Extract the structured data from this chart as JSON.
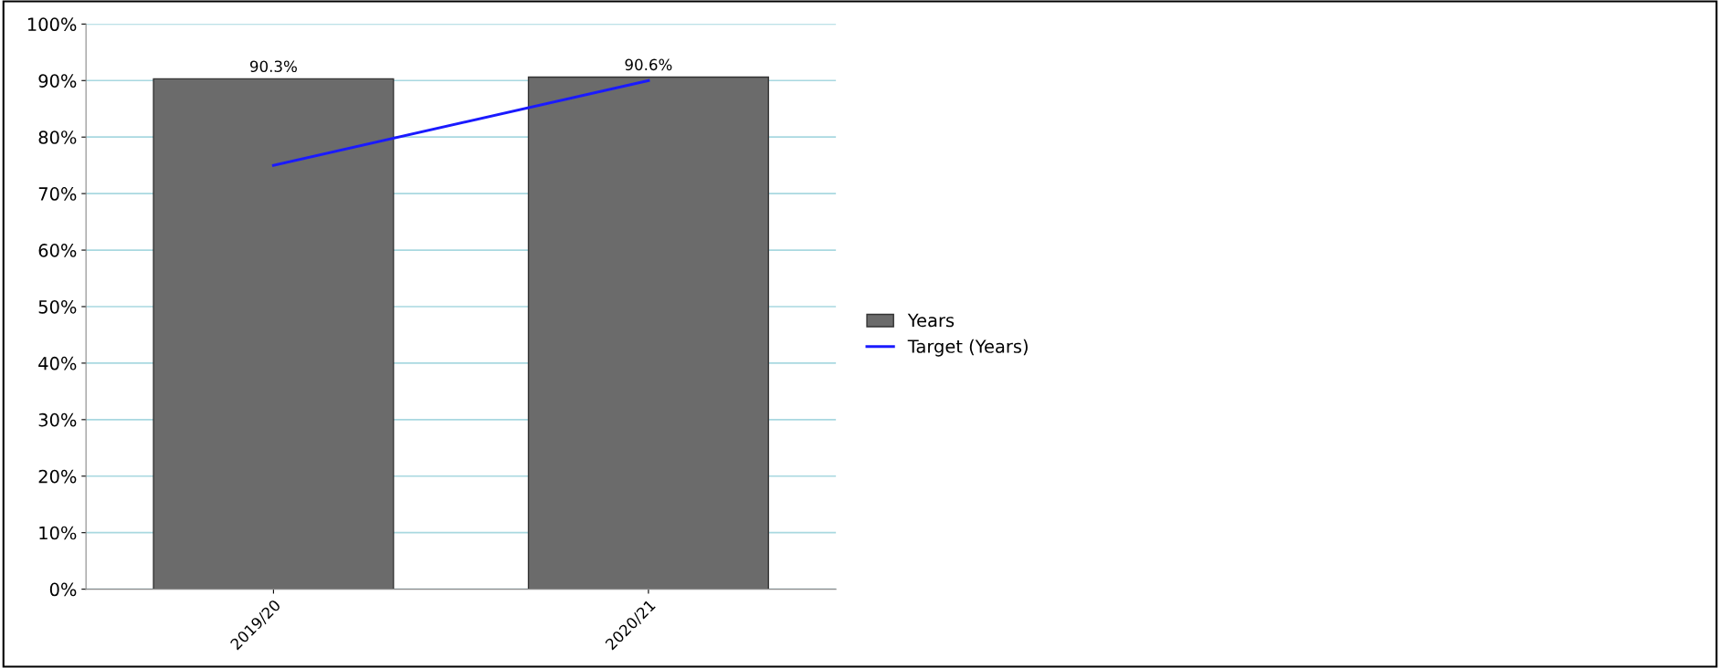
{
  "chart_data": {
    "type": "bar",
    "categories": [
      "2019/20",
      "2020/21"
    ],
    "series": [
      {
        "name": "Years",
        "color": "#6b6b6b",
        "values": [
          90.3,
          90.6
        ],
        "value_labels": [
          "90.3%",
          "90.6%"
        ]
      },
      {
        "name": "Target (Years)",
        "type": "line",
        "color": "#1a1aff",
        "values": [
          75,
          90
        ]
      }
    ],
    "ylim": [
      0,
      100
    ],
    "yticks": [
      {
        "value": 0,
        "label": "0%"
      },
      {
        "value": 10,
        "label": "10%"
      },
      {
        "value": 20,
        "label": "20%"
      },
      {
        "value": 30,
        "label": "30%"
      },
      {
        "value": 40,
        "label": "40%"
      },
      {
        "value": 50,
        "label": "50%"
      },
      {
        "value": 60,
        "label": "60%"
      },
      {
        "value": 70,
        "label": "70%"
      },
      {
        "value": 80,
        "label": "80%"
      },
      {
        "value": 90,
        "label": "90%"
      },
      {
        "value": 100,
        "label": "100%"
      }
    ],
    "grid": "y",
    "legend": "right",
    "marker": "none",
    "line_style": "solid"
  }
}
